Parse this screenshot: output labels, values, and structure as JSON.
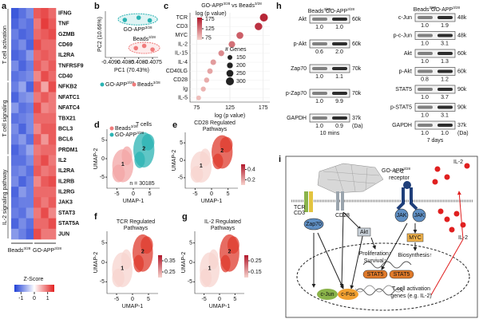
{
  "panels": {
    "a": {
      "label": "a",
      "conditions": [
        "Beads",
        "GO-APP"
      ],
      "sup": "3/28",
      "legend_title": "Z-Score",
      "legend_ticks": [
        -1,
        0,
        1
      ],
      "zlim": [
        -1.5,
        1.5
      ],
      "groups": [
        {
          "name": "T cell activation",
          "genes": [
            {
              "name": "IFNG",
              "z": [
                -1.3,
                -1.1,
                -0.9,
                1.1,
                1.2,
                1.0
              ]
            },
            {
              "name": "TNF",
              "z": [
                -1.2,
                -1.0,
                -1.1,
                0.9,
                1.3,
                1.1
              ]
            },
            {
              "name": "GZMB",
              "z": [
                -1.0,
                -1.2,
                -1.1,
                1.0,
                1.1,
                1.2
              ]
            },
            {
              "name": "CD69",
              "z": [
                -1.1,
                -0.9,
                -1.2,
                1.2,
                1.0,
                1.0
              ]
            },
            {
              "name": "IL2RA",
              "z": [
                -1.2,
                -1.1,
                -0.8,
                1.0,
                1.1,
                1.0
              ]
            },
            {
              "name": "TNFRSF9",
              "z": [
                -0.9,
                -1.2,
                -1.0,
                1.1,
                0.9,
                1.1
              ]
            },
            {
              "name": "CD40",
              "z": [
                -1.1,
                -1.0,
                -0.9,
                0.8,
                1.2,
                1.0
              ]
            }
          ]
        },
        {
          "name": "T cell signaling",
          "genes": [
            {
              "name": "NFKB2",
              "z": [
                -1.0,
                -0.7,
                -1.2,
                1.1,
                0.6,
                1.2
              ]
            },
            {
              "name": "NFATC1",
              "z": [
                -1.2,
                -0.9,
                -0.8,
                0.9,
                1.1,
                0.9
              ]
            },
            {
              "name": "NFATC4",
              "z": [
                -0.8,
                -1.1,
                -1.0,
                1.2,
                0.8,
                0.9
              ]
            },
            {
              "name": "TBX21",
              "z": [
                -1.1,
                -1.0,
                -0.9,
                1.0,
                1.0,
                1.0
              ]
            },
            {
              "name": "BCL3",
              "z": [
                -0.9,
                -1.2,
                -0.9,
                0.8,
                1.1,
                1.1
              ]
            },
            {
              "name": "BCL6",
              "z": [
                -1.0,
                -0.8,
                -1.1,
                1.1,
                0.7,
                1.1
              ]
            },
            {
              "name": "PRDM1",
              "z": [
                -1.2,
                -1.0,
                -0.7,
                0.9,
                1.0,
                1.0
              ]
            }
          ]
        },
        {
          "name": "IL-2 signaling pathway",
          "genes": [
            {
              "name": "IL2",
              "z": [
                -1.1,
                -1.1,
                -0.9,
                1.0,
                1.2,
                0.9
              ]
            },
            {
              "name": "IL2RA",
              "z": [
                -1.0,
                -0.9,
                -1.1,
                1.1,
                0.9,
                1.0
              ]
            },
            {
              "name": "IL2RB",
              "z": [
                -0.9,
                -1.2,
                -1.0,
                0.8,
                1.1,
                1.2
              ]
            },
            {
              "name": "IL2RG",
              "z": [
                -1.2,
                -0.8,
                -1.0,
                1.0,
                1.0,
                1.0
              ]
            },
            {
              "name": "JAK3",
              "z": [
                -1.1,
                -1.0,
                -1.0,
                1.1,
                0.9,
                1.1
              ]
            },
            {
              "name": "STAT3",
              "z": [
                -1.0,
                -1.1,
                -0.8,
                0.9,
                1.2,
                0.8
              ]
            },
            {
              "name": "STAT5A",
              "z": [
                -1.2,
                -0.9,
                -1.1,
                1.0,
                1.0,
                1.2
              ]
            },
            {
              "name": "JUN",
              "z": [
                -0.8,
                -1.0,
                -1.2,
                1.2,
                0.9,
                0.9
              ]
            }
          ]
        }
      ]
    },
    "b": {
      "label": "b",
      "type": "scatter",
      "xlabel": "PC1 (70.43%)",
      "ylabel": "PC2 (10.66%)",
      "xlim": [
        -0.4092,
        -0.4073
      ],
      "ylim": [
        -1,
        1
      ],
      "xticks": [
        {
          "value": -0.409,
          "label": "-0.4090"
        },
        {
          "value": -0.4085,
          "label": "-0.4085"
        },
        {
          "value": -0.408,
          "label": "-0.4080"
        },
        {
          "value": -0.4075,
          "label": "-0.4075"
        }
      ],
      "series": [
        {
          "name": "GO-APP",
          "sup": "3/28",
          "color": "#2bb3b3",
          "x": [
            -0.4085,
            -0.408,
            -0.4076
          ],
          "y": [
            0.62,
            0.72,
            0.6
          ]
        },
        {
          "name": "Beads",
          "sup": "3/28",
          "color": "#f07b7b",
          "x": [
            -0.4081,
            -0.4078,
            -0.4075
          ],
          "y": [
            -0.6,
            -0.5,
            -0.66
          ]
        }
      ]
    },
    "c": {
      "label": "c",
      "type": "dot",
      "title": [
        "GO-APP",
        "3/28",
        " vs Beads",
        "3/28"
      ],
      "xlabel": "log (p value)",
      "xlim": [
        65,
        185
      ],
      "xticks": [
        75,
        125,
        175
      ],
      "categories": [
        "TCR",
        "CD3",
        "MYC",
        "IL-2",
        "IL-15",
        "IL-4",
        "CD40LG",
        "CD28",
        "Ig",
        "IL-5"
      ],
      "values": [
        176,
        168,
        140,
        128,
        112,
        100,
        95,
        90,
        85,
        78
      ],
      "sizes": [
        300,
        280,
        250,
        230,
        200,
        190,
        180,
        170,
        160,
        150
      ],
      "color_title": "log (p value)",
      "clim": [
        65,
        185
      ],
      "cticks": [
        175,
        125,
        75
      ],
      "size_title": "# Genes",
      "size_legend": [
        150,
        200,
        250,
        300
      ]
    },
    "d": {
      "label": "d",
      "title": "T cells",
      "legend": [
        "Beads",
        "GO-APP"
      ],
      "sup": "3/28",
      "colors": [
        "#f07b7b",
        "#2bb3b3"
      ],
      "note": "n = 30185",
      "clusters": [
        "1",
        "2"
      ],
      "xlabel": "UMAP-1",
      "ylabel": "UMAP-2",
      "xlim": [
        -8,
        8
      ],
      "ylim": [
        -8,
        8
      ],
      "xticks": [
        -5,
        0,
        5
      ],
      "yticks": [
        -5,
        0,
        5
      ]
    },
    "e": {
      "label": "e",
      "title": [
        "CD28 Regulated",
        "Pathways"
      ],
      "clusters": [
        "1",
        "2"
      ],
      "xlabel": "UMAP-1",
      "ylabel": "UMAP-2",
      "xlim": [
        -8,
        8
      ],
      "ylim": [
        -8,
        8
      ],
      "xticks": [
        -5,
        0,
        5
      ],
      "yticks": [
        -5,
        0,
        5
      ],
      "clim": [
        0.1,
        0.5
      ],
      "cticks": [
        0.4,
        0.2
      ]
    },
    "f": {
      "label": "f",
      "title": [
        "TCR Regulated",
        "Pathways"
      ],
      "clusters": [
        "1",
        "2"
      ],
      "xlabel": "UMAP-1",
      "ylabel": "UMAP-2",
      "xlim": [
        -8,
        8
      ],
      "ylim": [
        -8,
        8
      ],
      "xticks": [
        -5,
        0,
        5
      ],
      "yticks": [
        -5,
        0,
        5
      ],
      "clim": [
        0.2,
        0.4
      ],
      "cticks": [
        0.35,
        0.25
      ]
    },
    "g": {
      "label": "g",
      "title": [
        "IL-2 Regulated",
        "Pathways"
      ],
      "clusters": [
        "1",
        "2"
      ],
      "xlabel": "UMAP-1",
      "ylabel": "UMAP-2",
      "xlim": [
        -8,
        8
      ],
      "ylim": [
        -8,
        8
      ],
      "xticks": [
        -5,
        0,
        5
      ],
      "yticks": [
        -5,
        0,
        5
      ],
      "clim": [
        0.1,
        0.3
      ],
      "cticks": [
        0.25,
        0.15
      ]
    },
    "h": {
      "label": "h",
      "header": [
        "Beads",
        "GO-APP"
      ],
      "sup": "3/28",
      "da": "(Da)",
      "left": {
        "time": "10 mins",
        "rows": [
          {
            "label": "Akt",
            "kda": "60k",
            "quant": [
              "1.0",
              "1.0"
            ]
          },
          {
            "label": "p-Akt",
            "kda": "60k",
            "quant": [
              "0.6",
              "2.0"
            ]
          },
          {
            "label": "Zap70",
            "kda": "70k",
            "quant": [
              "1.0",
              "1.1"
            ]
          },
          {
            "label": "p-Zap70",
            "kda": "70k",
            "quant": [
              "1.0",
              "9.9"
            ]
          },
          {
            "label": "GAPDH",
            "kda": "37k",
            "quant": [
              "1.0",
              "0.9"
            ]
          }
        ]
      },
      "right": {
        "time": "7 days",
        "rows": [
          {
            "label": "c-Jun",
            "kda": "48k",
            "quant": [
              "1.0",
              "1.9"
            ]
          },
          {
            "label": "p-c-Jun",
            "kda": "48k",
            "quant": [
              "1.0",
              "3.1"
            ]
          },
          {
            "label": "Akt",
            "kda": "60k",
            "quant": [
              "1.0",
              "1.3"
            ]
          },
          {
            "label": "p-Akt",
            "kda": "60k",
            "quant": [
              "0.8",
              "1.2"
            ]
          },
          {
            "label": "STAT5",
            "kda": "90k",
            "quant": [
              "1.0",
              "3.7"
            ]
          },
          {
            "label": "p-STAT5",
            "kda": "90k",
            "quant": [
              "1.0",
              "3.1"
            ]
          },
          {
            "label": "GAPDH",
            "kda": "37k",
            "quant": [
              "1.0",
              "1.0"
            ]
          }
        ]
      }
    },
    "i": {
      "label": "i",
      "scaffold": "GO-APP",
      "sup": "3/28",
      "tcr": "TCR",
      "cd3": "CD3",
      "cd28": "CD28",
      "receptor": [
        "IL-2",
        "receptor"
      ],
      "il2": "IL-2",
      "zap70": "Zap70",
      "jak": "JAK",
      "akt": "Akt",
      "myc": "MYC",
      "prolif": "Proliferation↑",
      "survival": "Survival↑",
      "biosynth": "Biosynthesis↑",
      "stat5": "STAT5",
      "cjun": "c-Jun",
      "cfos": "c-Fos",
      "genes": [
        "T cell activation",
        "genes (e.g. IL-2)"
      ]
    }
  }
}
